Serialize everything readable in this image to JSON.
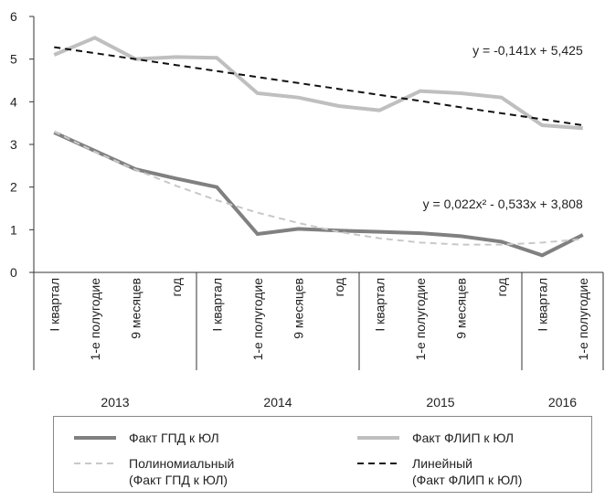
{
  "chart_data": {
    "type": "line",
    "categories": [
      "I квартал",
      "1-е полугодие",
      "9 месяцев",
      "год",
      "I квартал",
      "1-е полугодие",
      "9 месяцев",
      "год",
      "I квартал",
      "1-е полугодие",
      "9 месяцев",
      "год",
      "I квартал",
      "1-е полугодие"
    ],
    "groups": [
      {
        "label": "2013",
        "span": 4
      },
      {
        "label": "2014",
        "span": 4
      },
      {
        "label": "2015",
        "span": 4
      },
      {
        "label": "2016",
        "span": 2
      }
    ],
    "series": [
      {
        "name": "Факт ГПД к ЮЛ",
        "color": "#808080",
        "style": "solid",
        "values": [
          3.28,
          2.85,
          2.42,
          2.2,
          2.0,
          0.9,
          1.02,
          0.98,
          0.95,
          0.92,
          0.85,
          0.72,
          0.4,
          0.88
        ]
      },
      {
        "name": "Факт ФЛИП к ЮЛ",
        "color": "#bfbfbf",
        "style": "solid",
        "values": [
          5.1,
          5.5,
          5.0,
          5.05,
          5.03,
          4.2,
          4.1,
          3.9,
          3.8,
          4.25,
          4.2,
          4.1,
          3.45,
          3.38
        ]
      },
      {
        "name": "Полиномиальный\n(Факт ГПД к ЮЛ)",
        "color": "#c8c8c8",
        "style": "dashed",
        "values": [
          3.3,
          2.83,
          2.41,
          2.03,
          1.69,
          1.4,
          1.16,
          0.95,
          0.8,
          0.7,
          0.65,
          0.65,
          0.7,
          0.78
        ]
      },
      {
        "name": "Линейный\n(Факт ФЛИП к ЮЛ)",
        "color": "#111111",
        "style": "dashed",
        "values": [
          5.28,
          5.14,
          5.0,
          4.86,
          4.72,
          4.58,
          4.44,
          4.3,
          4.16,
          4.02,
          3.87,
          3.73,
          3.59,
          3.45
        ]
      }
    ],
    "annotations": [
      {
        "text": "y = -0,141x + 5,425",
        "x": 13,
        "y": 5.1
      },
      {
        "text": "y = 0,022x² - 0,533x + 3,808",
        "x": 13,
        "y": 1.5
      }
    ],
    "ylim": [
      0,
      6
    ],
    "yticks": [
      0,
      1,
      2,
      3,
      4,
      5,
      6
    ]
  }
}
